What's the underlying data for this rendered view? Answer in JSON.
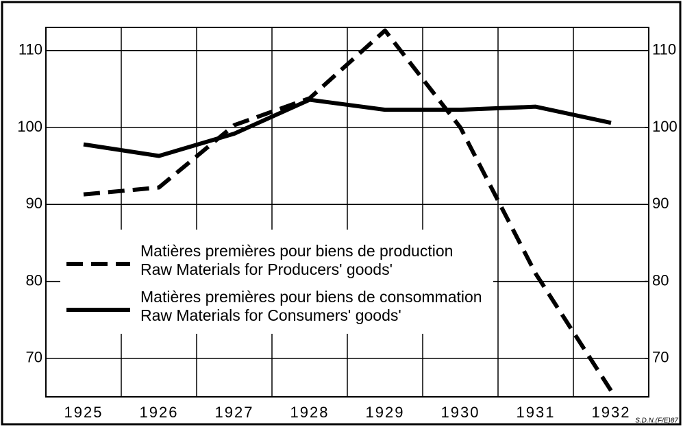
{
  "chart_data": {
    "type": "line",
    "categories": [
      "1925",
      "1926",
      "1927",
      "1928",
      "1929",
      "1930",
      "1931",
      "1932"
    ],
    "series": [
      {
        "name": [
          "Matières premières pour biens de production",
          "Raw Materials for Producers' goods'"
        ],
        "color": "#000000",
        "style": "dashed",
        "values": [
          91.3,
          92.2,
          100.3,
          103.8,
          112.6,
          100.0,
          81.0,
          65.8
        ]
      },
      {
        "name": [
          "Matières premières pour biens de consommation",
          "Raw Materials for Consumers' goods'"
        ],
        "color": "#000000",
        "style": "solid",
        "values": [
          97.8,
          96.3,
          99.2,
          103.6,
          102.3,
          102.3,
          102.7,
          100.6
        ]
      }
    ],
    "ylim": [
      65,
      113
    ],
    "yticks": [
      70,
      80,
      90,
      100,
      110
    ],
    "y2lim": [
      65,
      113
    ],
    "y2ticks": [
      70,
      80,
      90,
      100,
      110
    ],
    "grid": true,
    "footnote": "S.D.N.(F/E)87"
  }
}
